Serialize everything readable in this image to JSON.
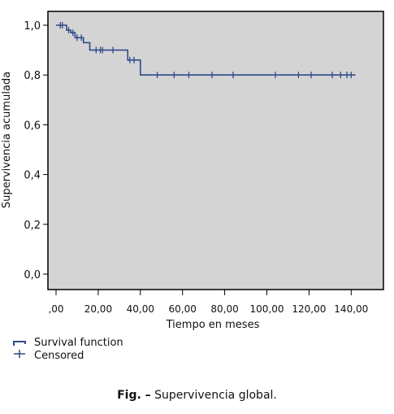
{
  "chart_data": {
    "type": "line",
    "ylabel": "Supervivencia acumulada",
    "xlabel": "Tiempo en meses",
    "xlim": [
      0,
      145
    ],
    "ylim": [
      0,
      1.04
    ],
    "x_ticks": [
      0,
      20,
      40,
      60,
      80,
      100,
      120,
      140
    ],
    "x_tick_labels": [
      ",00",
      "20,00",
      "40,00",
      "60,00",
      "80,00",
      "100,00",
      "120,00",
      "140,00"
    ],
    "y_ticks": [
      0,
      0.2,
      0.4,
      0.6,
      0.8,
      1.0
    ],
    "y_tick_labels": [
      "0,0",
      "0,2",
      "0,4",
      "0,6",
      "0,8",
      "1,0"
    ],
    "plot_background": "#d4d4d4",
    "line_color": "#2e4a8a",
    "grid": false,
    "legend_position": "bottom-left",
    "series": [
      {
        "name": "Survival function",
        "steps": [
          [
            0,
            1.0
          ],
          [
            4,
            1.0
          ],
          [
            5,
            0.98
          ],
          [
            7,
            0.97
          ],
          [
            9,
            0.95
          ],
          [
            13,
            0.93
          ],
          [
            16,
            0.9
          ],
          [
            33,
            0.9
          ],
          [
            34,
            0.86
          ],
          [
            40,
            0.86
          ],
          [
            40,
            0.8
          ],
          [
            142,
            0.8
          ]
        ],
        "censored_label": "Censored",
        "censored": [
          [
            2,
            1.0
          ],
          [
            3,
            1.0
          ],
          [
            6,
            0.98
          ],
          [
            8,
            0.97
          ],
          [
            10,
            0.95
          ],
          [
            12,
            0.95
          ],
          [
            19,
            0.9
          ],
          [
            21,
            0.9
          ],
          [
            22,
            0.9
          ],
          [
            27,
            0.9
          ],
          [
            35,
            0.86
          ],
          [
            37,
            0.86
          ],
          [
            48,
            0.8
          ],
          [
            56,
            0.8
          ],
          [
            63,
            0.8
          ],
          [
            74,
            0.8
          ],
          [
            84,
            0.8
          ],
          [
            104,
            0.8
          ],
          [
            115,
            0.8
          ],
          [
            121,
            0.8
          ],
          [
            131,
            0.8
          ],
          [
            135,
            0.8
          ],
          [
            138,
            0.8
          ],
          [
            140,
            0.8
          ]
        ]
      }
    ]
  },
  "legend": {
    "survival_label": "Survival function",
    "censored_label": "Censored"
  },
  "caption": {
    "prefix": "Fig. –",
    "text": " Supervivencia global."
  }
}
